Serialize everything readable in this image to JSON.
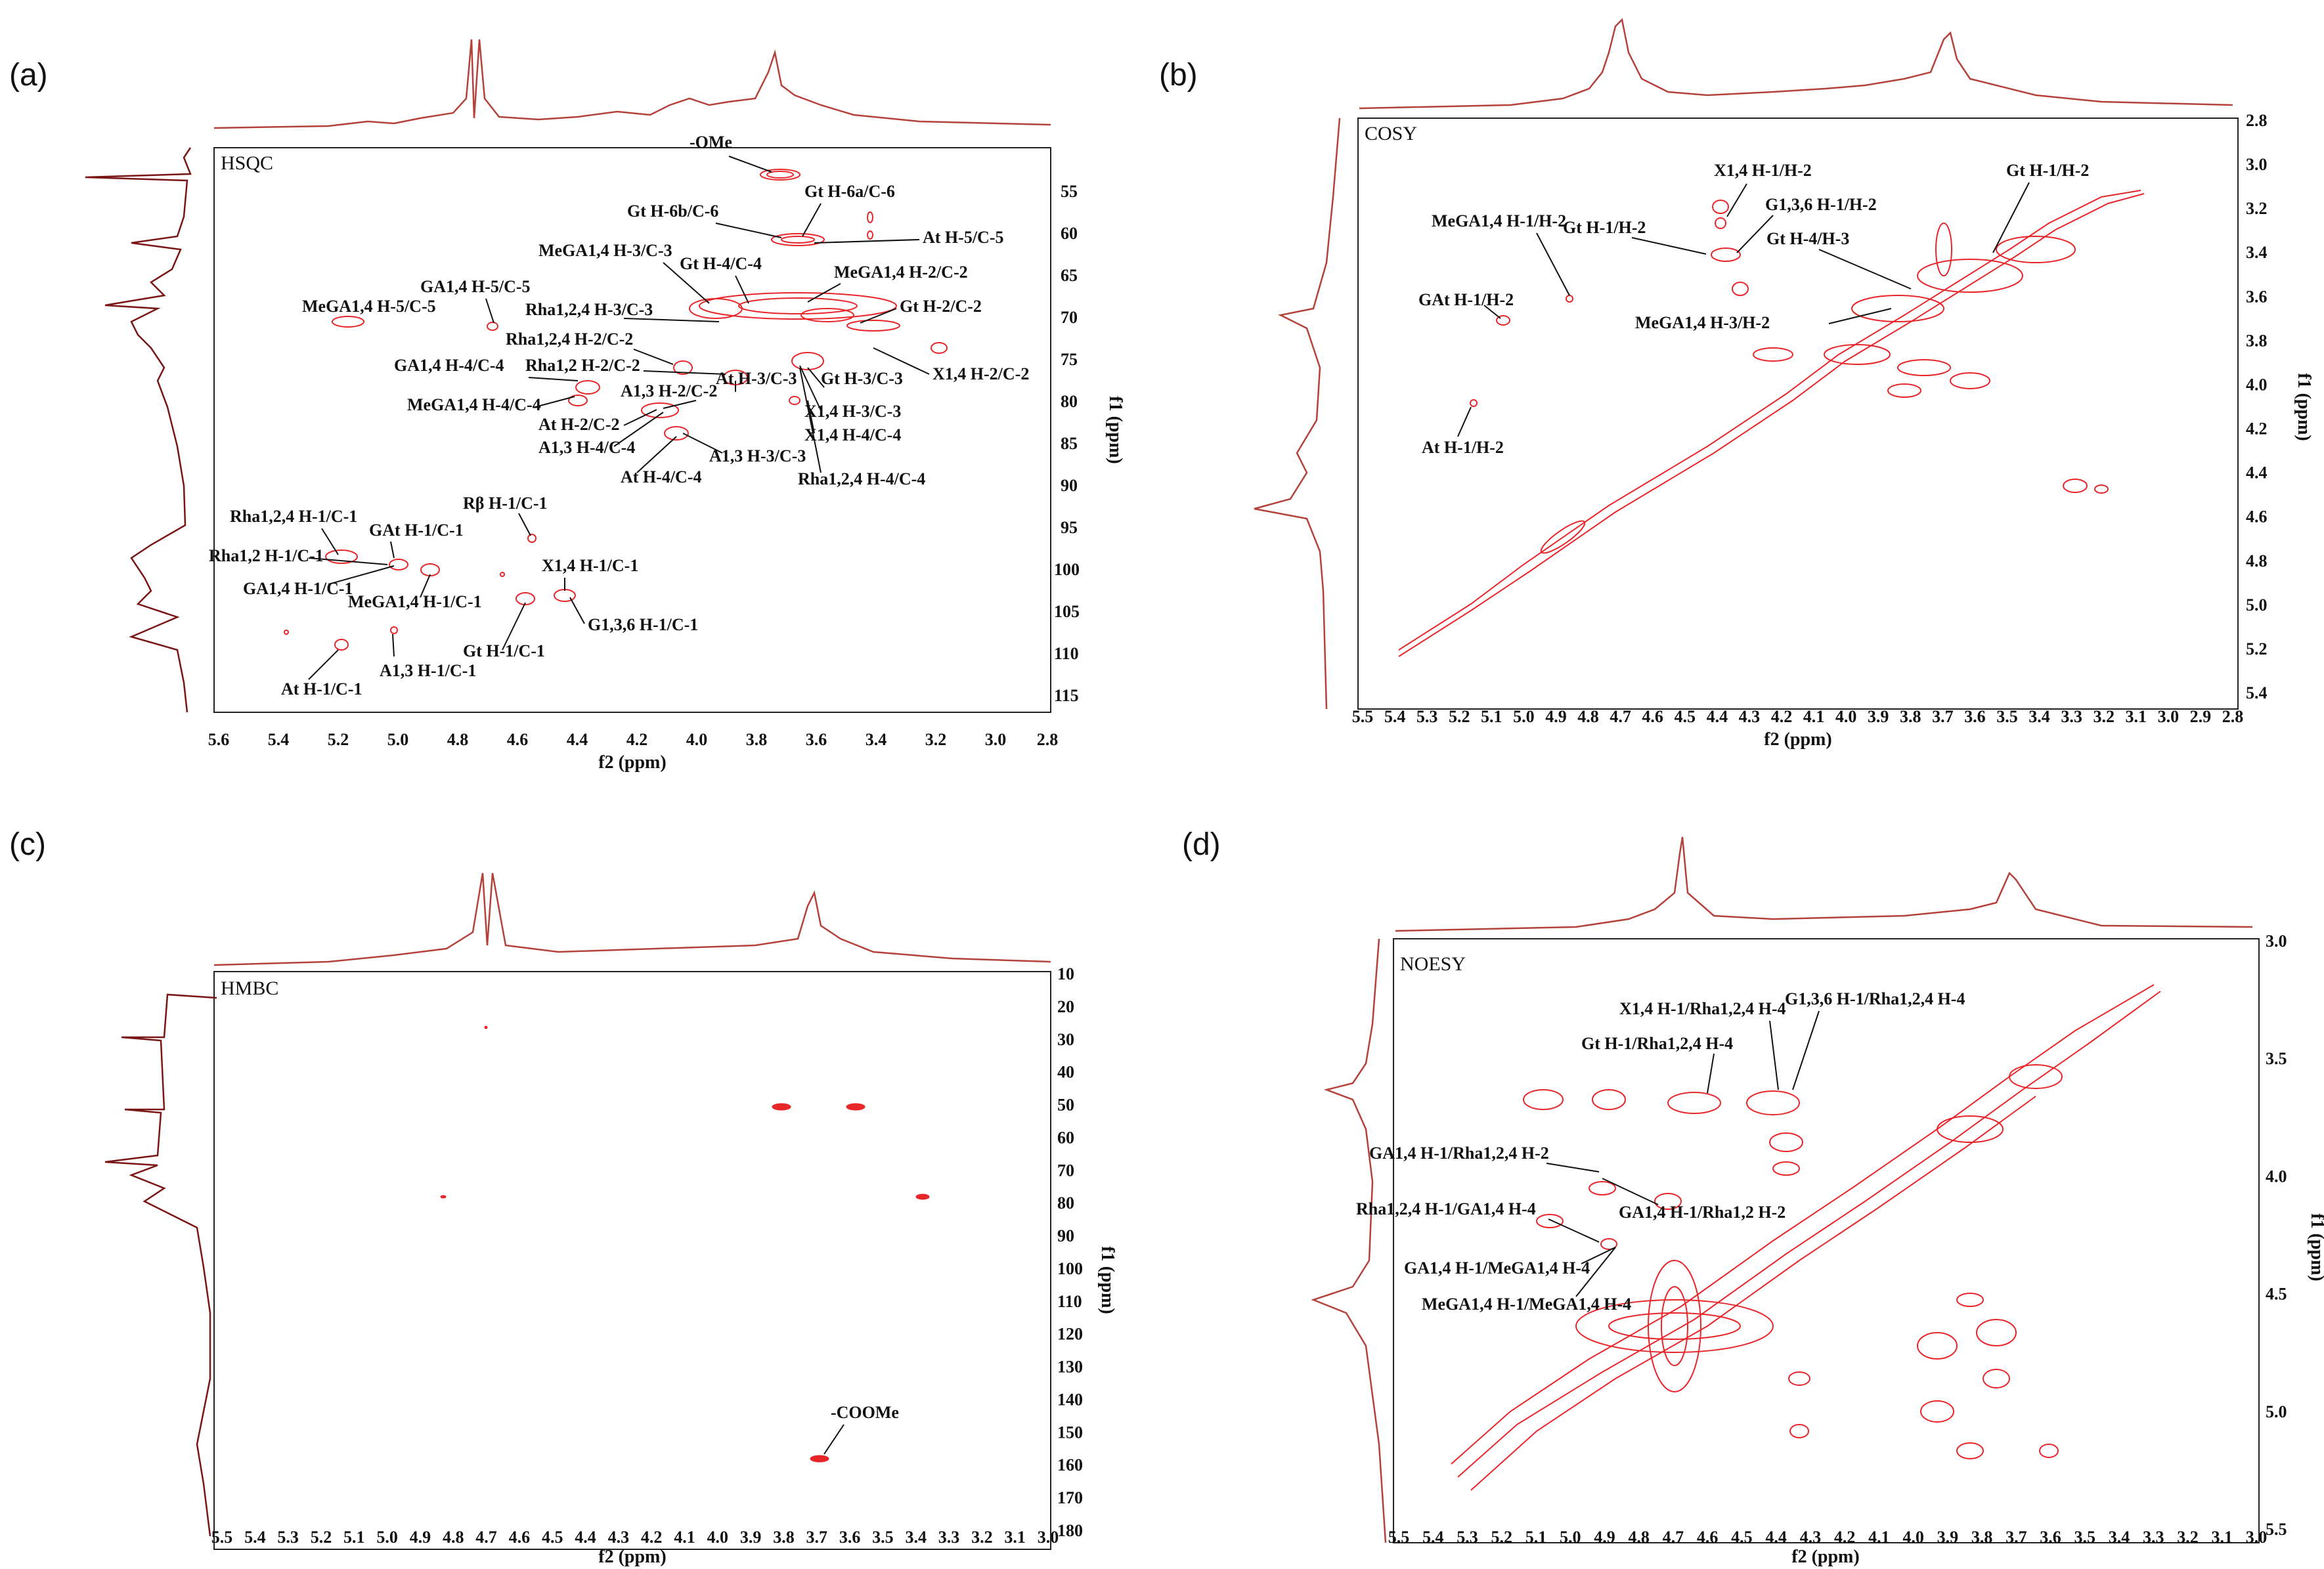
{
  "figure": {
    "panel_tags": [
      "(a)",
      "(b)",
      "(c)",
      "(d)"
    ]
  },
  "colors": {
    "contour": "#e8262a",
    "projection": "#b5413b",
    "text": "#111111"
  },
  "chart_data": [
    {
      "panel": "(a)",
      "name": "HSQC",
      "type": "scatter",
      "xlabel": "f2 (ppm)",
      "ylabel": "f1 (ppm)",
      "xlim": [
        5.6,
        2.8
      ],
      "ylim": [
        50,
        117
      ],
      "xticks": [
        "5.6",
        "5.4",
        "5.2",
        "5.0",
        "4.8",
        "4.6",
        "4.4",
        "4.2",
        "4.0",
        "3.8",
        "3.6",
        "3.4",
        "3.2",
        "3.0",
        "2.8"
      ],
      "yticks": [
        "55",
        "60",
        "65",
        "70",
        "75",
        "80",
        "85",
        "90",
        "95",
        "100",
        "105",
        "110",
        "115"
      ],
      "annotations": [
        {
          "text": "-OMe",
          "x": 3.71,
          "y": 53.5
        },
        {
          "text": "Gt H-6a/C-6",
          "x": 3.63,
          "y": 61.5
        },
        {
          "text": "Gt H-6b/C-6",
          "x": 3.72,
          "y": 62.0
        },
        {
          "text": "At H-5/C-5",
          "x": 3.62,
          "y": 63.0
        },
        {
          "text": "MeGA1,4 H-3/C-3",
          "x": 3.84,
          "y": 68.5
        },
        {
          "text": "Gt H-4/C-4",
          "x": 3.75,
          "y": 69.0
        },
        {
          "text": "MeGA1,4 H-2/C-2",
          "x": 3.68,
          "y": 69.0
        },
        {
          "text": "GA1,4 H-5/C-5",
          "x": 4.66,
          "y": 71.5
        },
        {
          "text": "MeGA1,4 H-5/C-5",
          "x": 5.12,
          "y": 70.5
        },
        {
          "text": "Gt H-2/C-2",
          "x": 3.45,
          "y": 72.5
        },
        {
          "text": "Rha1,2,4 H-3/C-3",
          "x": 3.9,
          "y": 74.0
        },
        {
          "text": "Rha1,2,4 H-2/C-2",
          "x": 4.0,
          "y": 76.0
        },
        {
          "text": "X1,4 H-2/C-2",
          "x": 3.3,
          "y": 74.0
        },
        {
          "text": "Rha1,2 H-2/C-2",
          "x": 4.02,
          "y": 77.5
        },
        {
          "text": "GA1,4 H-4/C-4",
          "x": 4.36,
          "y": 78.0
        },
        {
          "text": "Gt H-3/C-3",
          "x": 3.61,
          "y": 75.5
        },
        {
          "text": "MeGA1,4 H-4/C-4",
          "x": 4.41,
          "y": 79.5
        },
        {
          "text": "A1,3 H-2/C-2",
          "x": 4.07,
          "y": 82.0
        },
        {
          "text": "At H-2/C-2",
          "x": 4.15,
          "y": 81.5
        },
        {
          "text": "At H-3/C-3",
          "x": 3.86,
          "y": 77.5
        },
        {
          "text": "X1,4 H-3/C-3",
          "x": 3.64,
          "y": 79.5
        },
        {
          "text": "A1,3 H-4/C-4",
          "x": 4.15,
          "y": 82.0
        },
        {
          "text": "A1,3 H-3/C-3",
          "x": 4.03,
          "y": 84.0
        },
        {
          "text": "X1,4 H-4/C-4",
          "x": 3.65,
          "y": 81.0
        },
        {
          "text": "At H-4/C-4",
          "x": 4.05,
          "y": 84.5
        },
        {
          "text": "Rha1,2,4 H-4/C-4",
          "x": 3.72,
          "y": 76.5
        },
        {
          "text": "Rβ H-1/C-1",
          "x": 4.5,
          "y": 96.5
        },
        {
          "text": "Rha1,2,4 H-1/C-1",
          "x": 5.12,
          "y": 98.5
        },
        {
          "text": "GAt H-1/C-1",
          "x": 5.08,
          "y": 99.0
        },
        {
          "text": "Rha1,2 H-1/C-1",
          "x": 5.06,
          "y": 99.5
        },
        {
          "text": "GA1,4 H-1/C-1",
          "x": 5.02,
          "y": 100.0
        },
        {
          "text": "MeGA1,4 H-1/C-1",
          "x": 4.9,
          "y": 100.5
        },
        {
          "text": "X1,4 H-1/C-1",
          "x": 4.38,
          "y": 102.8
        },
        {
          "text": "G1,3,6 H-1/C-1",
          "x": 4.4,
          "y": 104.0
        },
        {
          "text": "Gt H-1/C-1",
          "x": 4.52,
          "y": 103.8
        },
        {
          "text": "At H-1/C-1",
          "x": 5.13,
          "y": 109.3
        },
        {
          "text": "A1,3 H-1/C-1",
          "x": 4.98,
          "y": 107.8
        }
      ]
    },
    {
      "panel": "(b)",
      "name": "COSY",
      "type": "scatter",
      "xlabel": "f2 (ppm)",
      "ylabel": "f1 (ppm)",
      "xlim": [
        5.55,
        2.8
      ],
      "ylim": [
        2.8,
        5.5
      ],
      "xticks": [
        "5.5",
        "5.4",
        "5.3",
        "5.2",
        "5.1",
        "5.0",
        "4.9",
        "4.8",
        "4.7",
        "4.6",
        "4.5",
        "4.4",
        "4.3",
        "4.2",
        "4.1",
        "4.0",
        "3.9",
        "3.8",
        "3.7",
        "3.6",
        "3.5",
        "3.4",
        "3.3",
        "3.2",
        "3.1",
        "3.0",
        "2.9",
        "2.8"
      ],
      "yticks": [
        "2.8",
        "3.0",
        "3.2",
        "3.4",
        "3.6",
        "3.8",
        "4.0",
        "4.2",
        "4.4",
        "4.6",
        "4.8",
        "5.0",
        "5.2",
        "5.4"
      ],
      "annotations": [
        {
          "text": "X1,4 H-1/H-2",
          "x": 4.42,
          "y": 3.22
        },
        {
          "text": "G1,3,6 H-1/H-2",
          "x": 4.38,
          "y": 3.42
        },
        {
          "text": "Gt H-1/H-2",
          "x": 3.55,
          "y": 3.45
        },
        {
          "text": "MeGA1,4 H-1/H-2",
          "x": 4.86,
          "y": 3.63
        },
        {
          "text": "Gt H-1/H-2",
          "x": 4.5,
          "y": 3.42
        },
        {
          "text": "Gt H-4/H-3",
          "x": 3.83,
          "y": 3.57
        },
        {
          "text": "GAt H-1/H-2",
          "x": 5.1,
          "y": 3.74
        },
        {
          "text": "MeGA1,4 H-3/H-2",
          "x": 3.93,
          "y": 3.62
        },
        {
          "text": "At H-1/H-2",
          "x": 5.07,
          "y": 4.05
        }
      ]
    },
    {
      "panel": "(c)",
      "name": "HMBC",
      "type": "scatter",
      "xlabel": "f2 (ppm)",
      "ylabel": "f1 (ppm)",
      "xlim": [
        5.55,
        3.0
      ],
      "ylim": [
        10,
        185
      ],
      "xticks": [
        "5.5",
        "5.4",
        "5.3",
        "5.2",
        "5.1",
        "5.0",
        "4.9",
        "4.8",
        "4.7",
        "4.6",
        "4.5",
        "4.4",
        "4.3",
        "4.2",
        "4.1",
        "4.0",
        "3.9",
        "3.8",
        "3.7",
        "3.6",
        "3.5",
        "3.4",
        "3.3",
        "3.2",
        "3.1",
        "3.0"
      ],
      "yticks": [
        "10",
        "20",
        "30",
        "40",
        "50",
        "60",
        "70",
        "80",
        "90",
        "100",
        "110",
        "120",
        "130",
        "140",
        "150",
        "160",
        "170",
        "180"
      ],
      "annotations": [
        {
          "text": "-COOMe",
          "x": 3.72,
          "y": 171
        }
      ]
    },
    {
      "panel": "(d)",
      "name": "NOESY",
      "type": "scatter",
      "xlabel": "f2 (ppm)",
      "ylabel": "f1 (ppm)",
      "xlim": [
        5.55,
        3.0
      ],
      "ylim": [
        3.0,
        5.5
      ],
      "xticks": [
        "5.5",
        "5.4",
        "5.3",
        "5.2",
        "5.1",
        "5.0",
        "4.9",
        "4.8",
        "4.7",
        "4.6",
        "4.5",
        "4.4",
        "4.3",
        "4.2",
        "4.1",
        "4.0",
        "3.9",
        "3.8",
        "3.7",
        "3.6",
        "3.5",
        "3.4",
        "3.3",
        "3.2",
        "3.1",
        "3.0"
      ],
      "yticks": [
        "3.0",
        "3.5",
        "4.0",
        "4.5",
        "5.0",
        "5.5"
      ],
      "annotations": [
        {
          "text": "X1,4 H-1/Rha1,2,4 H-4",
          "x": 4.39,
          "y": 3.62
        },
        {
          "text": "G1,3,6 H-1/Rha1,2,4 H-4",
          "x": 4.37,
          "y": 3.62
        },
        {
          "text": "Gt H-1/Rha1,2,4 H-4",
          "x": 4.55,
          "y": 3.6
        },
        {
          "text": "GA1,4 H-1/Rha1,2,4 H-2",
          "x": 4.86,
          "y": 4.05
        },
        {
          "text": "GA1,4 H-1/Rha1,2 H-2",
          "x": 4.87,
          "y": 4.05
        },
        {
          "text": "Rha1,2,4 H-1/GA1,4 H-4",
          "x": 5.14,
          "y": 4.33
        },
        {
          "text": "GA1,4 H-1/MeGA1,4 H-4",
          "x": 5.02,
          "y": 4.36
        },
        {
          "text": "MeGA1,4 H-1/MeGA1,4 H-4",
          "x": 4.92,
          "y": 4.36
        }
      ]
    }
  ]
}
